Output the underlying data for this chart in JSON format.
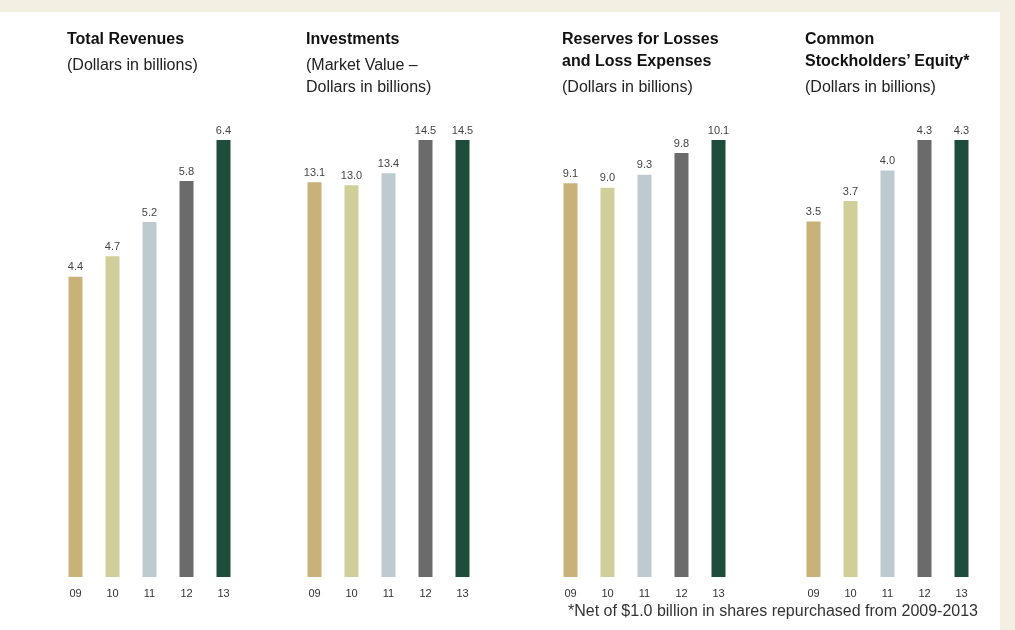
{
  "chart_data": [
    {
      "type": "bar",
      "title": "Total Revenues",
      "subtitle": "(Dollars in billions)",
      "categories": [
        "09",
        "10",
        "11",
        "12",
        "13"
      ],
      "values": [
        4.4,
        4.7,
        5.2,
        5.8,
        6.4
      ],
      "value_labels": [
        "4.4",
        "4.7",
        "5.2",
        "5.8",
        "6.4"
      ],
      "colors": [
        "#c8b27a",
        "#d0cf9a",
        "#bdcacf",
        "#6b6b6b",
        "#1e4d3c"
      ],
      "grid": false
    },
    {
      "type": "bar",
      "title": "Investments",
      "subtitle": "(Market Value –\nDollars in billions)",
      "categories": [
        "09",
        "10",
        "11",
        "12",
        "13"
      ],
      "values": [
        13.1,
        13.0,
        13.4,
        14.5,
        14.5
      ],
      "value_labels": [
        "13.1",
        "13.0",
        "13.4",
        "14.5",
        "14.5"
      ],
      "colors": [
        "#c8b27a",
        "#d0cf9a",
        "#bdcacf",
        "#6b6b6b",
        "#1e4d3c"
      ],
      "grid": false
    },
    {
      "type": "bar",
      "title": "Reserves for Losses and Loss Expenses",
      "subtitle": "(Dollars in billions)",
      "categories": [
        "09",
        "10",
        "11",
        "12",
        "13"
      ],
      "values": [
        9.1,
        9.0,
        9.3,
        9.8,
        10.1
      ],
      "value_labels": [
        "9.1",
        "9.0",
        "9.3",
        "9.8",
        "10.1"
      ],
      "colors": [
        "#c8b27a",
        "#d0cf9a",
        "#bdcacf",
        "#6b6b6b",
        "#1e4d3c"
      ],
      "grid": false
    },
    {
      "type": "bar",
      "title": "Common Stockholders’ Equity*",
      "subtitle": "(Dollars in billions)",
      "categories": [
        "09",
        "10",
        "11",
        "12",
        "13"
      ],
      "values": [
        3.5,
        3.7,
        4.0,
        4.3,
        4.3
      ],
      "value_labels": [
        "3.5",
        "3.7",
        "4.0",
        "4.3",
        "4.3"
      ],
      "colors": [
        "#c8b27a",
        "#d0cf9a",
        "#bdcacf",
        "#6b6b6b",
        "#1e4d3c"
      ],
      "grid": false,
      "annotations": [
        "*Net of $1.0 billion in shares repurchased from 2009-2013"
      ]
    }
  ]
}
